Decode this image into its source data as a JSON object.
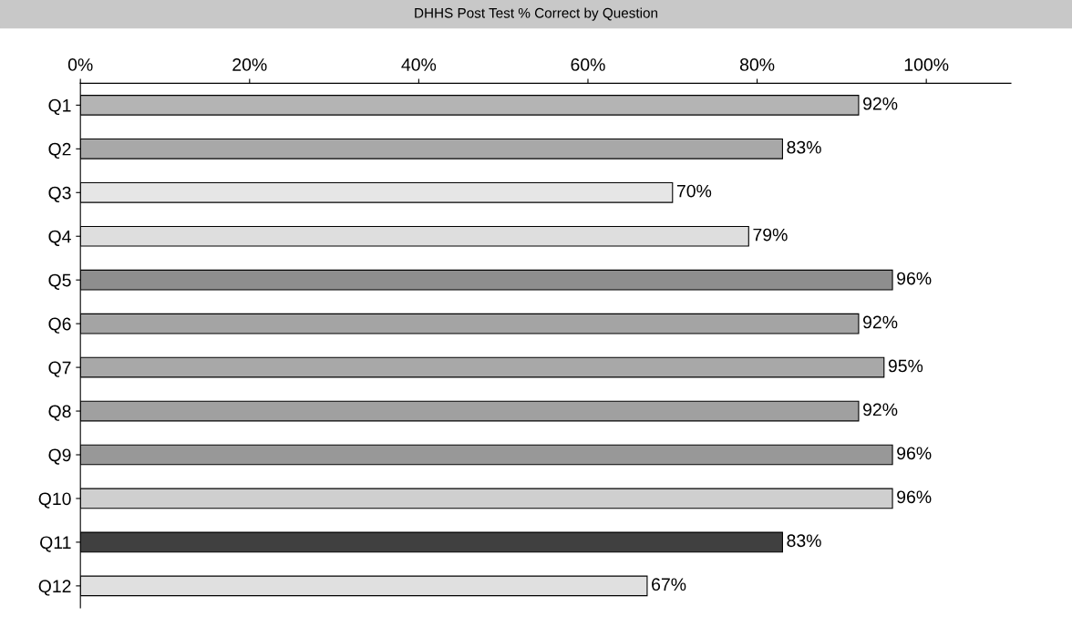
{
  "chart_data": {
    "type": "bar",
    "orientation": "horizontal",
    "title": "DHHS Post Test % Correct by Question",
    "categories": [
      "Q1",
      "Q2",
      "Q3",
      "Q4",
      "Q5",
      "Q6",
      "Q7",
      "Q8",
      "Q9",
      "Q10",
      "Q11",
      "Q12"
    ],
    "values": [
      92,
      83,
      70,
      79,
      96,
      92,
      95,
      92,
      96,
      96,
      83,
      67
    ],
    "colors": [
      "#b4b4b4",
      "#a8a8a8",
      "#e6e6e6",
      "#dedede",
      "#8e8e8e",
      "#a4a4a4",
      "#a8a8a8",
      "#a0a0a0",
      "#989898",
      "#cfcfcf",
      "#404040",
      "#e0e0e0"
    ],
    "value_labels": [
      "92%",
      "83%",
      "70%",
      "79%",
      "96%",
      "92%",
      "95%",
      "92%",
      "96%",
      "96%",
      "83%",
      "67%"
    ],
    "xlim": [
      0,
      110
    ],
    "xticks": [
      {
        "value": 0,
        "label": "0%"
      },
      {
        "value": 20,
        "label": "20%"
      },
      {
        "value": 40,
        "label": "40%"
      },
      {
        "value": 60,
        "label": "60%"
      },
      {
        "value": 80,
        "label": "80%"
      },
      {
        "value": 100,
        "label": "100%"
      }
    ],
    "grid": false,
    "legend": false
  }
}
